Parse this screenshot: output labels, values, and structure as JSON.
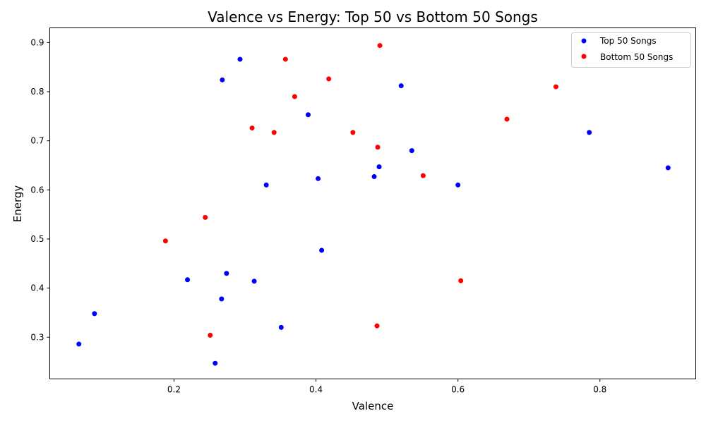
{
  "chart_data": {
    "type": "scatter",
    "title": "Valence vs Energy: Top 50 vs Bottom 50 Songs",
    "xlabel": "Valence",
    "ylabel": "Energy",
    "xlim": [
      0.025,
      0.935
    ],
    "ylim": [
      0.215,
      0.93
    ],
    "xticks": [
      0.2,
      0.4,
      0.6,
      0.8
    ],
    "xtick_labels": [
      "0.2",
      "0.4",
      "0.6",
      "0.8"
    ],
    "yticks": [
      0.3,
      0.4,
      0.5,
      0.6,
      0.7,
      0.8,
      0.9
    ],
    "ytick_labels": [
      "0.3",
      "0.4",
      "0.5",
      "0.6",
      "0.7",
      "0.8",
      "0.9"
    ],
    "grid": false,
    "legend": "top-right",
    "series": [
      {
        "name": "Top 50 Songs",
        "color": "#0000ff",
        "points": [
          [
            0.293,
            0.866
          ],
          [
            0.268,
            0.824
          ],
          [
            0.52,
            0.812
          ],
          [
            0.389,
            0.753
          ],
          [
            0.785,
            0.717
          ],
          [
            0.535,
            0.68
          ],
          [
            0.896,
            0.645
          ],
          [
            0.489,
            0.647
          ],
          [
            0.482,
            0.627
          ],
          [
            0.403,
            0.623
          ],
          [
            0.33,
            0.61
          ],
          [
            0.6,
            0.61
          ],
          [
            0.408,
            0.477
          ],
          [
            0.274,
            0.43
          ],
          [
            0.219,
            0.417
          ],
          [
            0.313,
            0.414
          ],
          [
            0.267,
            0.378
          ],
          [
            0.088,
            0.348
          ],
          [
            0.351,
            0.32
          ],
          [
            0.066,
            0.286
          ],
          [
            0.258,
            0.247
          ]
        ]
      },
      {
        "name": "Bottom 50 Songs",
        "color": "#ff0000",
        "points": [
          [
            0.49,
            0.894
          ],
          [
            0.357,
            0.866
          ],
          [
            0.418,
            0.826
          ],
          [
            0.738,
            0.81
          ],
          [
            0.37,
            0.79
          ],
          [
            0.669,
            0.744
          ],
          [
            0.31,
            0.726
          ],
          [
            0.341,
            0.717
          ],
          [
            0.452,
            0.717
          ],
          [
            0.487,
            0.687
          ],
          [
            0.551,
            0.629
          ],
          [
            0.244,
            0.544
          ],
          [
            0.188,
            0.496
          ],
          [
            0.604,
            0.415
          ],
          [
            0.486,
            0.323
          ],
          [
            0.251,
            0.304
          ]
        ]
      }
    ]
  }
}
